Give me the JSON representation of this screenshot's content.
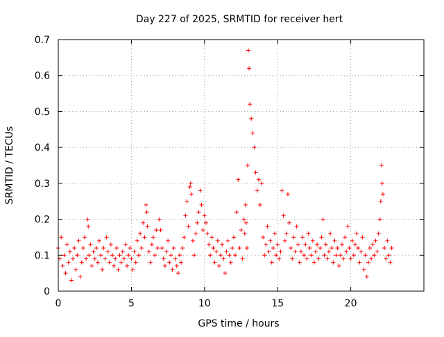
{
  "chart_data": {
    "type": "scatter",
    "title": "Day 227 of 2025, SRMTID for receiver hert",
    "xlabel": "GPS time / hours",
    "ylabel": "SRMTID / TECUs",
    "xlim": [
      0,
      25
    ],
    "ylim": [
      0,
      0.7
    ],
    "xticks": [
      0,
      5,
      10,
      15,
      20
    ],
    "xtick_labels": [
      "0",
      "5",
      "10",
      "15",
      "20"
    ],
    "yticks": [
      0,
      0.1,
      0.2,
      0.3,
      0.4,
      0.5,
      0.6,
      0.7
    ],
    "ytick_labels": [
      "0",
      "0.1",
      "0.2",
      "0.3",
      "0.4",
      "0.5",
      "0.6",
      "0.7"
    ],
    "grid": true,
    "marker": "plus",
    "marker_color": "#ff0000",
    "series": [
      {
        "name": "SRMTID",
        "x": [
          0.0,
          0.1,
          0.2,
          0.3,
          0.4,
          0.5,
          0.6,
          0.7,
          0.8,
          0.9,
          1.0,
          1.1,
          1.2,
          1.3,
          1.4,
          1.5,
          1.6,
          1.7,
          1.8,
          1.9,
          2.0,
          2.05,
          2.1,
          2.2,
          2.3,
          2.4,
          2.5,
          2.6,
          2.7,
          2.8,
          2.9,
          3.0,
          3.1,
          3.2,
          3.3,
          3.4,
          3.5,
          3.6,
          3.7,
          3.8,
          3.9,
          4.0,
          4.1,
          4.2,
          4.3,
          4.4,
          4.5,
          4.6,
          4.7,
          4.8,
          4.9,
          5.0,
          5.1,
          5.2,
          5.3,
          5.4,
          5.5,
          5.6,
          5.7,
          5.8,
          5.9,
          6.0,
          6.05,
          6.1,
          6.2,
          6.3,
          6.4,
          6.5,
          6.6,
          6.7,
          6.8,
          6.9,
          7.0,
          7.1,
          7.2,
          7.3,
          7.4,
          7.5,
          7.6,
          7.7,
          7.8,
          7.9,
          8.0,
          8.1,
          8.2,
          8.3,
          8.4,
          8.5,
          8.6,
          8.7,
          8.8,
          8.9,
          9.0,
          9.05,
          9.1,
          9.2,
          9.3,
          9.4,
          9.5,
          9.6,
          9.7,
          9.8,
          9.9,
          10.0,
          10.1,
          10.2,
          10.3,
          10.4,
          10.5,
          10.6,
          10.7,
          10.8,
          10.9,
          11.0,
          11.1,
          11.2,
          11.3,
          11.4,
          11.5,
          11.6,
          11.7,
          11.8,
          11.9,
          12.0,
          12.1,
          12.2,
          12.3,
          12.4,
          12.5,
          12.6,
          12.7,
          12.75,
          12.8,
          12.85,
          12.9,
          12.95,
          13.0,
          13.05,
          13.1,
          13.2,
          13.3,
          13.4,
          13.5,
          13.6,
          13.7,
          13.8,
          13.9,
          14.0,
          14.1,
          14.2,
          14.3,
          14.4,
          14.5,
          14.6,
          14.7,
          14.8,
          14.9,
          15.0,
          15.1,
          15.2,
          15.3,
          15.4,
          15.5,
          15.6,
          15.7,
          15.8,
          15.9,
          16.0,
          16.1,
          16.2,
          16.3,
          16.4,
          16.5,
          16.6,
          16.7,
          16.8,
          16.9,
          17.0,
          17.1,
          17.2,
          17.3,
          17.4,
          17.5,
          17.6,
          17.7,
          17.8,
          17.9,
          18.0,
          18.1,
          18.2,
          18.3,
          18.4,
          18.5,
          18.6,
          18.7,
          18.8,
          18.9,
          19.0,
          19.1,
          19.2,
          19.3,
          19.4,
          19.5,
          19.6,
          19.7,
          19.8,
          19.9,
          20.0,
          20.1,
          20.2,
          20.3,
          20.4,
          20.5,
          20.6,
          20.7,
          20.8,
          20.9,
          21.0,
          21.1,
          21.2,
          21.3,
          21.4,
          21.5,
          21.6,
          21.7,
          21.8,
          21.9,
          22.0,
          22.05,
          22.1,
          22.15,
          22.2,
          22.3,
          22.4,
          22.5,
          22.6,
          22.7,
          22.8
        ],
        "y": [
          0.12,
          0.09,
          0.15,
          0.07,
          0.1,
          0.05,
          0.13,
          0.08,
          0.11,
          0.03,
          0.09,
          0.12,
          0.06,
          0.1,
          0.14,
          0.04,
          0.08,
          0.12,
          0.15,
          0.09,
          0.2,
          0.18,
          0.1,
          0.13,
          0.07,
          0.11,
          0.09,
          0.12,
          0.08,
          0.14,
          0.1,
          0.06,
          0.12,
          0.09,
          0.15,
          0.11,
          0.08,
          0.13,
          0.1,
          0.07,
          0.09,
          0.12,
          0.06,
          0.1,
          0.08,
          0.11,
          0.09,
          0.13,
          0.07,
          0.1,
          0.12,
          0.09,
          0.06,
          0.11,
          0.08,
          0.14,
          0.1,
          0.16,
          0.12,
          0.19,
          0.15,
          0.24,
          0.22,
          0.18,
          0.11,
          0.08,
          0.13,
          0.15,
          0.1,
          0.17,
          0.12,
          0.2,
          0.17,
          0.12,
          0.09,
          0.07,
          0.11,
          0.14,
          0.08,
          0.1,
          0.06,
          0.12,
          0.09,
          0.07,
          0.05,
          0.1,
          0.08,
          0.12,
          0.15,
          0.21,
          0.25,
          0.18,
          0.29,
          0.3,
          0.27,
          0.14,
          0.1,
          0.16,
          0.19,
          0.22,
          0.28,
          0.24,
          0.17,
          0.21,
          0.19,
          0.16,
          0.13,
          0.1,
          0.15,
          0.12,
          0.08,
          0.11,
          0.14,
          0.07,
          0.1,
          0.13,
          0.09,
          0.05,
          0.11,
          0.14,
          0.1,
          0.08,
          0.12,
          0.15,
          0.1,
          0.22,
          0.31,
          0.12,
          0.17,
          0.09,
          0.2,
          0.16,
          0.24,
          0.19,
          0.12,
          0.35,
          0.67,
          0.62,
          0.52,
          0.48,
          0.44,
          0.4,
          0.33,
          0.28,
          0.31,
          0.24,
          0.3,
          0.15,
          0.1,
          0.13,
          0.18,
          0.11,
          0.14,
          0.08,
          0.12,
          0.16,
          0.1,
          0.13,
          0.09,
          0.11,
          0.28,
          0.21,
          0.14,
          0.16,
          0.27,
          0.19,
          0.12,
          0.09,
          0.15,
          0.11,
          0.18,
          0.13,
          0.08,
          0.11,
          0.15,
          0.1,
          0.13,
          0.09,
          0.16,
          0.12,
          0.1,
          0.14,
          0.08,
          0.11,
          0.13,
          0.09,
          0.12,
          0.15,
          0.2,
          0.1,
          0.13,
          0.09,
          0.11,
          0.16,
          0.12,
          0.08,
          0.14,
          0.1,
          0.12,
          0.07,
          0.1,
          0.13,
          0.09,
          0.15,
          0.11,
          0.18,
          0.12,
          0.09,
          0.14,
          0.1,
          0.13,
          0.16,
          0.12,
          0.08,
          0.11,
          0.15,
          0.06,
          0.1,
          0.04,
          0.08,
          0.12,
          0.09,
          0.13,
          0.1,
          0.14,
          0.11,
          0.16,
          0.2,
          0.25,
          0.35,
          0.3,
          0.27,
          0.12,
          0.09,
          0.14,
          0.1,
          0.08,
          0.12
        ]
      }
    ]
  }
}
